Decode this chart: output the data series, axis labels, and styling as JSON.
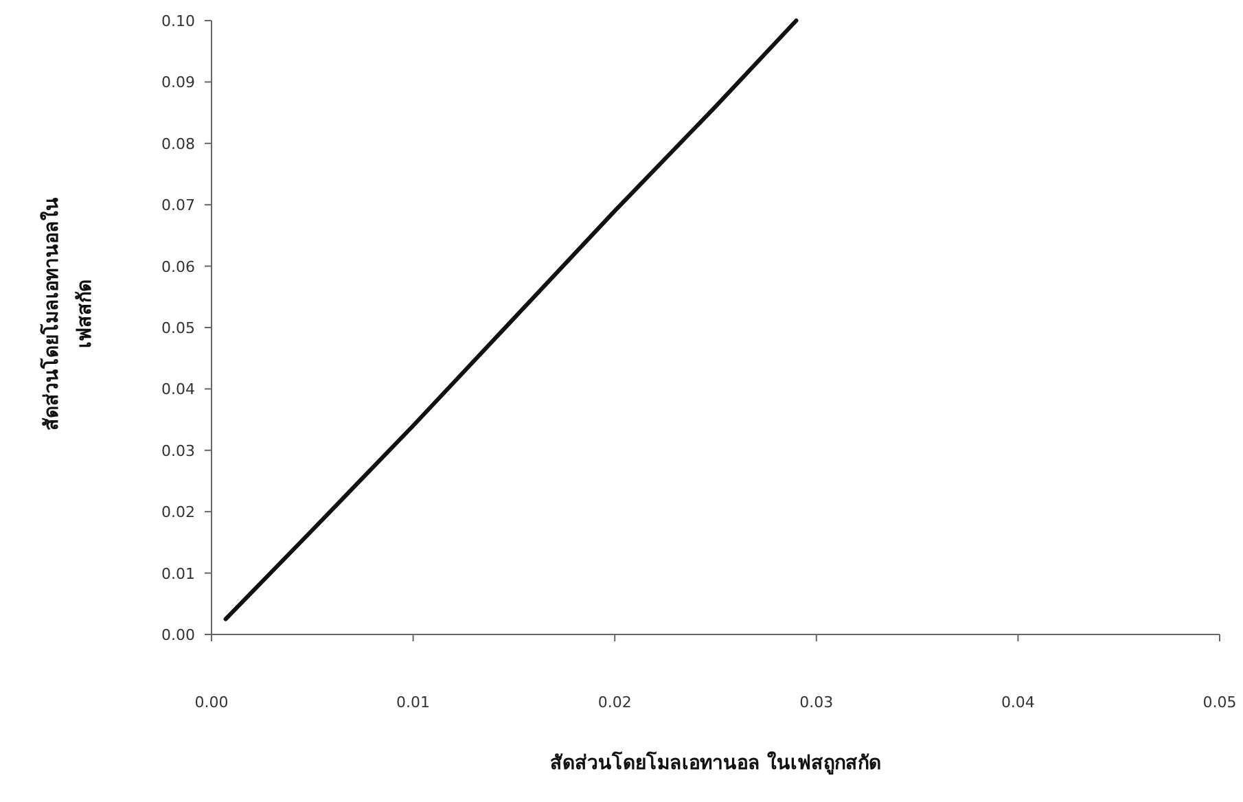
{
  "chart_data": {
    "type": "line",
    "xlabel": "สัดส่วนโดยโมลเอทานอล ในเฟสถูกสกัด",
    "ylabel": "สัดส่วนโดยโมลเอทานอลใน\nเฟสสกัด",
    "x": [
      0.0007,
      0.005,
      0.01,
      0.015,
      0.02,
      0.025,
      0.029
    ],
    "series": [
      {
        "color": "#111111",
        "values": [
          0.0025,
          0.017,
          0.034,
          0.0515,
          0.069,
          0.086,
          0.1
        ]
      }
    ],
    "xlim": [
      0,
      0.05
    ],
    "xticks": [
      {
        "value": 0,
        "label": "0.00"
      },
      {
        "value": 0.01,
        "label": "0.01"
      },
      {
        "value": 0.02,
        "label": "0.02"
      },
      {
        "value": 0.03,
        "label": "0.03"
      },
      {
        "value": 0.04,
        "label": "0.04"
      },
      {
        "value": 0.05,
        "label": "0.05"
      }
    ],
    "ylim": [
      0,
      0.1
    ],
    "yticks": [
      {
        "value": 0,
        "label": "0.00"
      },
      {
        "value": 0.01,
        "label": "0.01"
      },
      {
        "value": 0.02,
        "label": "0.02"
      },
      {
        "value": 0.03,
        "label": "0.03"
      },
      {
        "value": 0.04,
        "label": "0.04"
      },
      {
        "value": 0.05,
        "label": "0.05"
      },
      {
        "value": 0.06,
        "label": "0.06"
      },
      {
        "value": 0.07,
        "label": "0.07"
      },
      {
        "value": 0.08,
        "label": "0.08"
      },
      {
        "value": 0.09,
        "label": "0.09"
      },
      {
        "value": 0.1,
        "label": "0.10"
      }
    ],
    "grid": false,
    "marker": "none",
    "line_style": "solid"
  }
}
